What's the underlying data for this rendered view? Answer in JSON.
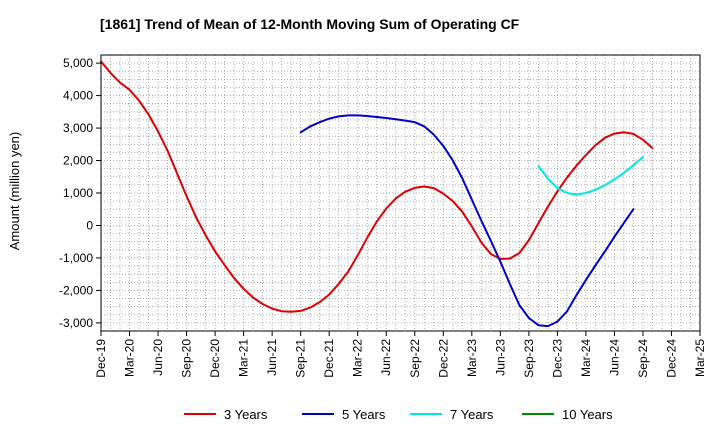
{
  "chart_data": {
    "type": "line",
    "title": "[1861]  Trend of Mean of 12-Month Moving Sum of Operating CF",
    "xlabel": "",
    "ylabel": "Amount (million yen)",
    "ylim": [
      -3250,
      5250
    ],
    "yticks": [
      5000,
      4000,
      3000,
      2000,
      1000,
      0,
      -1000,
      -2000,
      -3000
    ],
    "ytick_labels": [
      "5,000",
      "4,000",
      "3,000",
      "2,000",
      "1,000",
      "0",
      "-1,000",
      "-2,000",
      "-3,000"
    ],
    "x_start": "Dec-19",
    "x_months": 63,
    "xticks": [
      0,
      3,
      6,
      9,
      12,
      15,
      18,
      21,
      24,
      27,
      30,
      33,
      36,
      39,
      42,
      45,
      48,
      51,
      54,
      57,
      60,
      63
    ],
    "xtick_labels": [
      "Dec-19",
      "Mar-20",
      "Jun-20",
      "Sep-20",
      "Dec-20",
      "Mar-21",
      "Jun-21",
      "Sep-21",
      "Dec-21",
      "Mar-22",
      "Jun-22",
      "Sep-22",
      "Dec-22",
      "Mar-23",
      "Jun-23",
      "Sep-23",
      "Dec-23",
      "Mar-24",
      "Jun-24",
      "Sep-24",
      "Dec-24",
      "Mar-25"
    ],
    "grid": true,
    "legend_position": "bottom",
    "series": [
      {
        "name": "3 Years",
        "color": "#dd0000",
        "start_index": 0,
        "values": [
          5050,
          4700,
          4400,
          4180,
          3850,
          3420,
          2900,
          2300,
          1600,
          900,
          250,
          -300,
          -800,
          -1220,
          -1620,
          -1950,
          -2220,
          -2420,
          -2560,
          -2640,
          -2660,
          -2630,
          -2530,
          -2360,
          -2130,
          -1800,
          -1420,
          -920,
          -380,
          120,
          520,
          830,
          1040,
          1160,
          1200,
          1150,
          980,
          750,
          420,
          -30,
          -520,
          -880,
          -1030,
          -1020,
          -850,
          -450,
          70,
          580,
          1050,
          1470,
          1840,
          2170,
          2470,
          2700,
          2830,
          2870,
          2820,
          2640,
          2380
        ]
      },
      {
        "name": "5 Years",
        "color": "#0000cc",
        "start_index": 21,
        "values": [
          2870,
          3050,
          3180,
          3290,
          3360,
          3390,
          3390,
          3370,
          3340,
          3310,
          3270,
          3230,
          3180,
          3050,
          2800,
          2450,
          2000,
          1450,
          800,
          150,
          -470,
          -1110,
          -1800,
          -2450,
          -2850,
          -3070,
          -3100,
          -2960,
          -2650,
          -2150,
          -1680,
          -1230,
          -800,
          -350,
          80,
          500
        ]
      },
      {
        "name": "7 Years",
        "color": "#00e5e5",
        "start_index": 46,
        "values": [
          1830,
          1440,
          1150,
          1000,
          950,
          1000,
          1100,
          1240,
          1420,
          1620,
          1860,
          2110
        ]
      },
      {
        "name": "10 Years",
        "color": "#008800",
        "start_index": 0,
        "values": []
      }
    ]
  }
}
